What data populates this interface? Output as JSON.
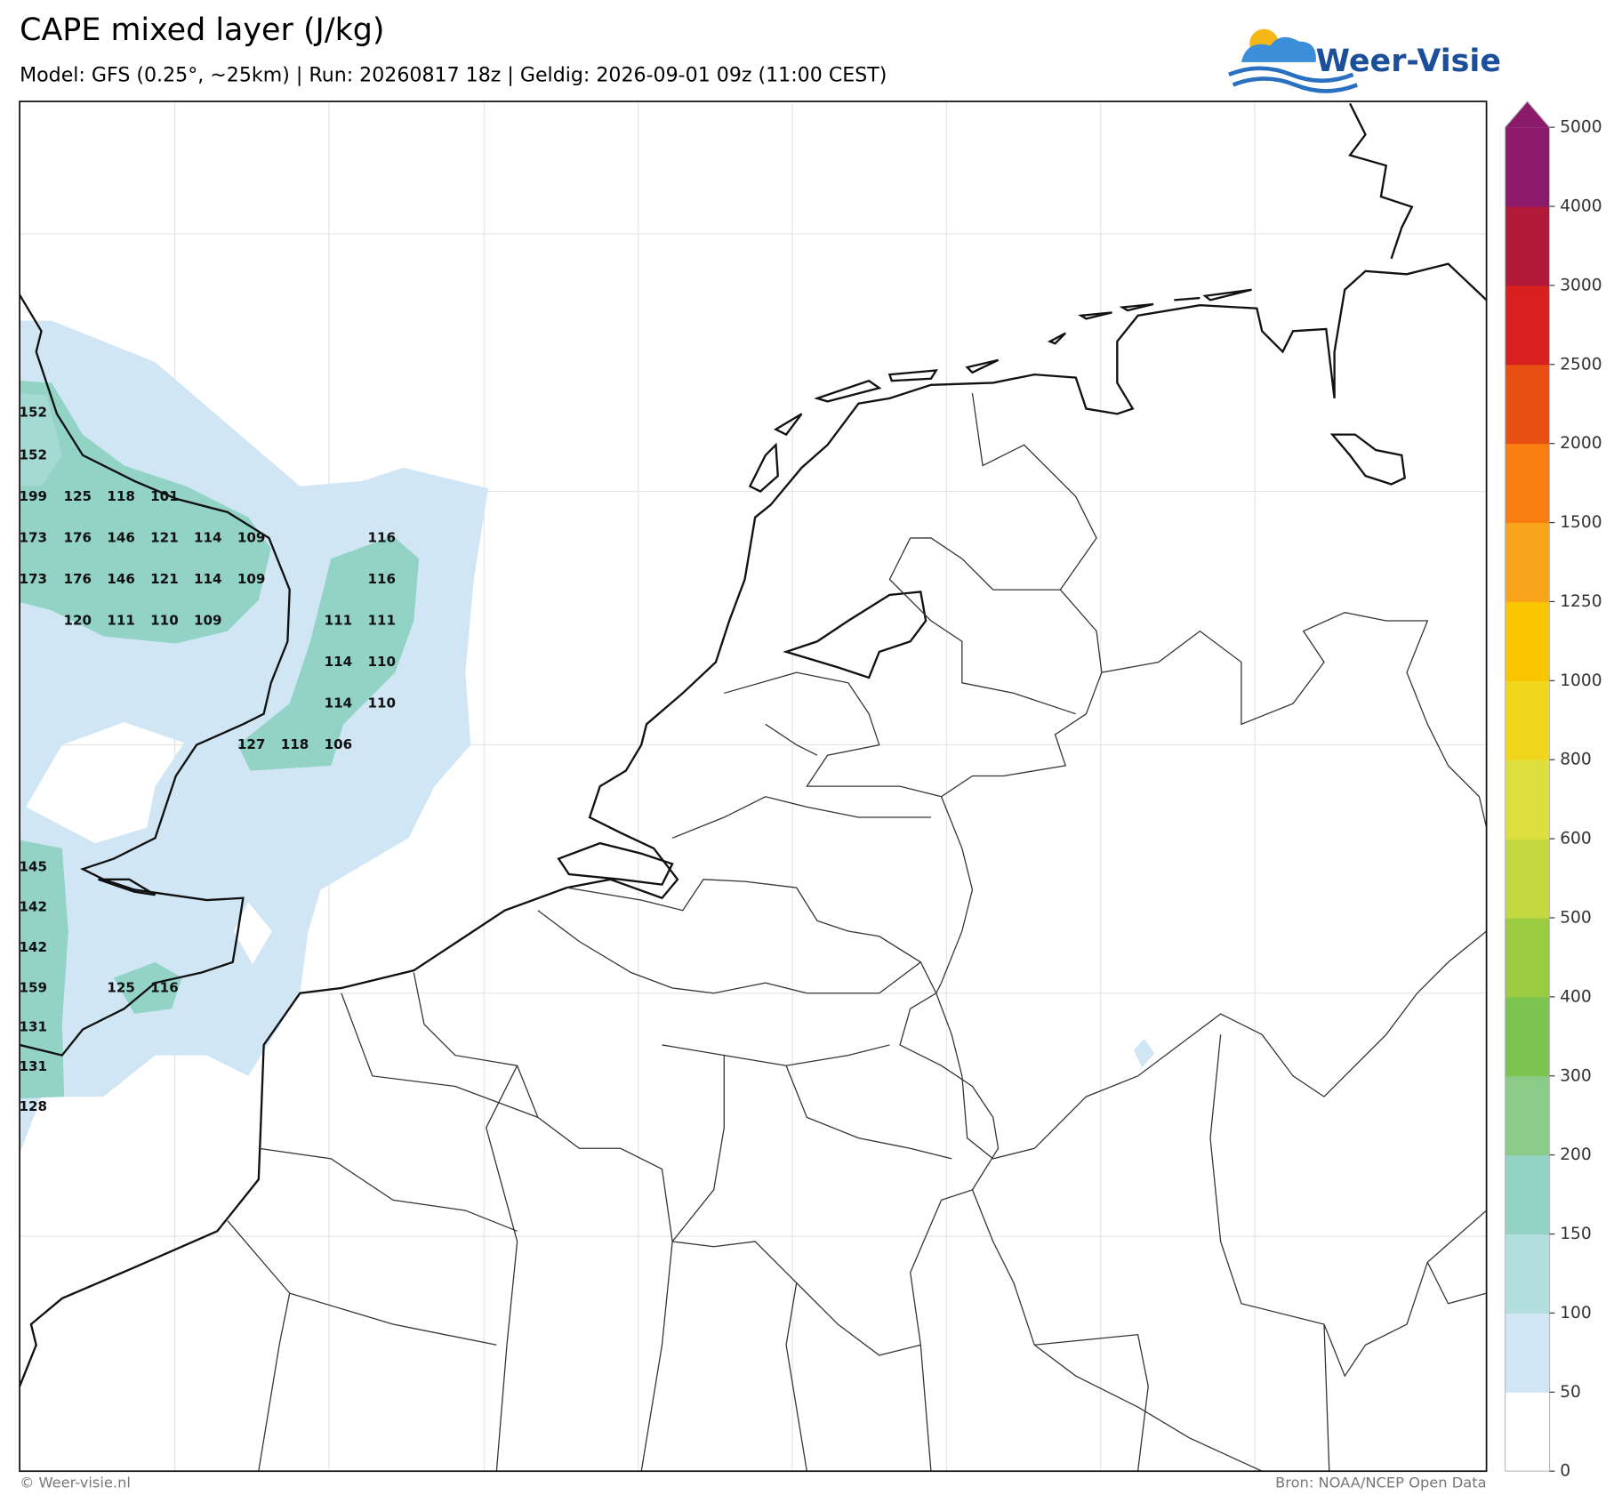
{
  "header": {
    "title": "CAPE mixed layer (J/kg)",
    "subtitle": "Model: GFS (0.25°, ~25km)  |  Run: 20260817 18z  |  Geldig: 2026-09-01 09z (11:00 CEST)"
  },
  "logo": {
    "text": "Weer-Visie"
  },
  "map": {
    "values": [
      152,
      152,
      199,
      125,
      118,
      101,
      173,
      176,
      146,
      121,
      114,
      109,
      116,
      173,
      176,
      146,
      121,
      114,
      109,
      116,
      120,
      111,
      110,
      109,
      111,
      111,
      114,
      110,
      114,
      110,
      127,
      118,
      106,
      145,
      142,
      142,
      159,
      125,
      116,
      131,
      131,
      128
    ]
  },
  "colorbar": {
    "ticks": [
      0,
      50,
      100,
      150,
      200,
      300,
      400,
      500,
      600,
      800,
      1000,
      1250,
      1500,
      2000,
      2500,
      3000,
      4000,
      5000
    ],
    "colors": [
      "#ffffff",
      "#d0e6f5",
      "#b2dede",
      "#92d3c6",
      "#8acb8a",
      "#7cc350",
      "#9acb40",
      "#c2da40",
      "#dde03e",
      "#f1d61e",
      "#fac600",
      "#f9a51c",
      "#f87e10",
      "#e84f12",
      "#d82020",
      "#b21a3a",
      "#8b1a6a"
    ]
  },
  "footer": {
    "left": "© Weer-visie.nl",
    "right": "Bron: NOAA/NCEP Open Data"
  }
}
